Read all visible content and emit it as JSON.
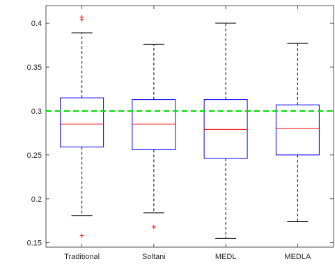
{
  "chart_data": {
    "type": "boxplot",
    "categories": [
      "Traditional",
      "Soltani",
      "MEDL",
      "MEDLA"
    ],
    "boxes": [
      {
        "whisker_low": 0.181,
        "q1": 0.259,
        "median": 0.285,
        "q3": 0.315,
        "whisker_high": 0.389,
        "outliers": [
          0.158,
          0.404,
          0.407
        ]
      },
      {
        "whisker_low": 0.184,
        "q1": 0.256,
        "median": 0.285,
        "q3": 0.313,
        "whisker_high": 0.376,
        "outliers": [
          0.168
        ]
      },
      {
        "whisker_low": 0.155,
        "q1": 0.246,
        "median": 0.279,
        "q3": 0.313,
        "whisker_high": 0.4,
        "outliers": []
      },
      {
        "whisker_low": 0.174,
        "q1": 0.25,
        "median": 0.28,
        "q3": 0.307,
        "whisker_high": 0.377,
        "outliers": []
      }
    ],
    "reference_line": {
      "y": 0.3,
      "color": "#00e000",
      "style": "dashed"
    },
    "ylim": [
      0.145,
      0.42
    ],
    "yticks": [
      0.15,
      0.2,
      0.25,
      0.3,
      0.35,
      0.4
    ],
    "ytick_labels": [
      "0.15",
      "0.2",
      "0.25",
      "0.3",
      "0.35",
      "0.4"
    ],
    "colors": {
      "box": "#0000ff",
      "median": "#ff0000",
      "whisker": "#000000",
      "outlier": "#ff0000",
      "axis": "#262626"
    },
    "title": "",
    "xlabel": "",
    "ylabel": "",
    "grid": false
  }
}
